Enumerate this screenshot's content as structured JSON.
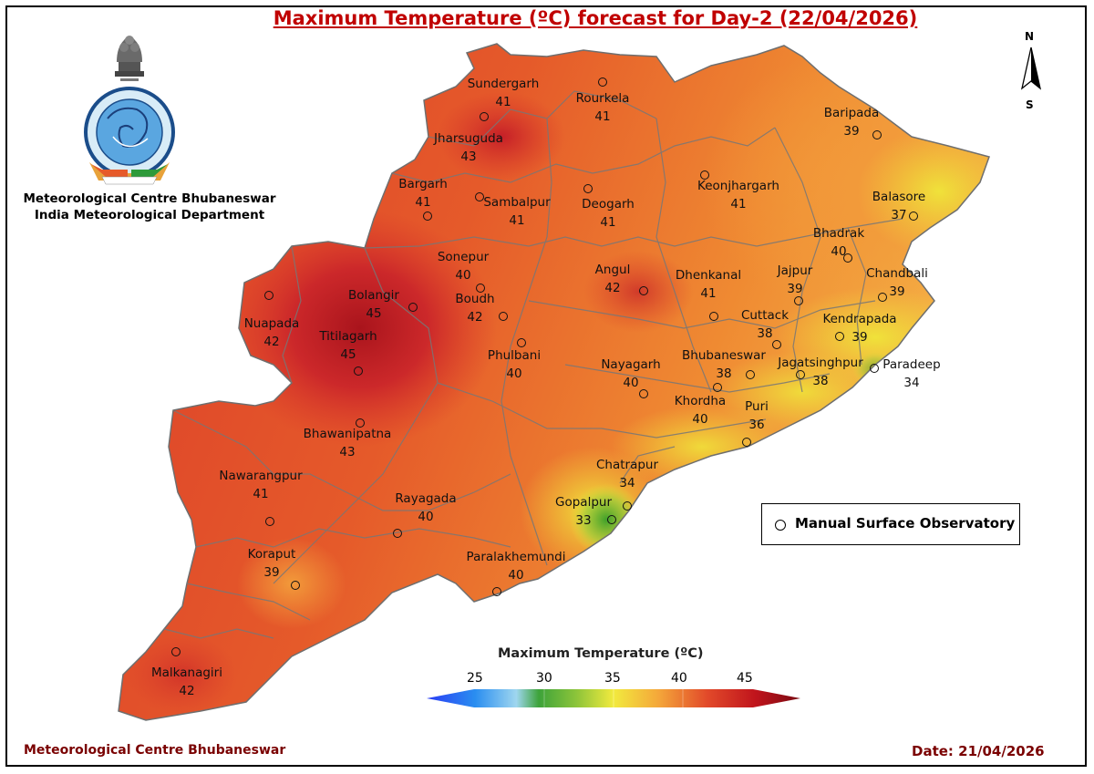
{
  "title": "Maximum Temperature (ºC) forecast for Day-2 (22/04/2026)",
  "organization": {
    "line1": "Meteorological Centre Bhubaneswar",
    "line2": "India Meteorological Department"
  },
  "footer": {
    "left": "Meteorological Centre Bhubaneswar",
    "date": "Date: 21/04/2026"
  },
  "legend": {
    "label": "Manual Surface Observatory"
  },
  "north_arrow": {
    "north": "N",
    "south": "S"
  },
  "colorbar": {
    "title": "Maximum Temperature (ºC)",
    "ticks": [
      "25",
      "30",
      "35",
      "40",
      "45"
    ]
  },
  "stations": [
    {
      "name": "Sundergarh",
      "temp": "41"
    },
    {
      "name": "Rourkela",
      "temp": "41"
    },
    {
      "name": "Baripada",
      "temp": "39"
    },
    {
      "name": "Jharsuguda",
      "temp": "43"
    },
    {
      "name": "Bargarh",
      "temp": "41"
    },
    {
      "name": "Sambalpur",
      "temp": "41"
    },
    {
      "name": "Deogarh",
      "temp": "41"
    },
    {
      "name": "Keonjhargarh",
      "temp": "41"
    },
    {
      "name": "Balasore",
      "temp": "37"
    },
    {
      "name": "Bhadrak",
      "temp": "40"
    },
    {
      "name": "Sonepur",
      "temp": "40"
    },
    {
      "name": "Angul",
      "temp": "42"
    },
    {
      "name": "Dhenkanal",
      "temp": "41"
    },
    {
      "name": "Jajpur",
      "temp": "39"
    },
    {
      "name": "Chandbali",
      "temp": "39"
    },
    {
      "name": "Bolangir",
      "temp": "45"
    },
    {
      "name": "Boudh",
      "temp": "42"
    },
    {
      "name": "Nuapada",
      "temp": "42"
    },
    {
      "name": "Cuttack",
      "temp": "38"
    },
    {
      "name": "Kendrapada",
      "temp": "39"
    },
    {
      "name": "Titilagarh",
      "temp": "45"
    },
    {
      "name": "Phulbani",
      "temp": "40"
    },
    {
      "name": "Nayagarh",
      "temp": "40"
    },
    {
      "name": "Bhubaneswar",
      "temp": "38"
    },
    {
      "name": "Jagatsinghpur",
      "temp": "38"
    },
    {
      "name": "Paradeep",
      "temp": "34"
    },
    {
      "name": "Khordha",
      "temp": "40"
    },
    {
      "name": "Puri",
      "temp": "36"
    },
    {
      "name": "Bhawanipatna",
      "temp": "43"
    },
    {
      "name": "Chatrapur",
      "temp": "34"
    },
    {
      "name": "Nawarangpur",
      "temp": "41"
    },
    {
      "name": "Gopalpur",
      "temp": "33"
    },
    {
      "name": "Rayagada",
      "temp": "40"
    },
    {
      "name": "Koraput",
      "temp": "39"
    },
    {
      "name": "Paralakhemundi",
      "temp": "40"
    },
    {
      "name": "Malkanagiri",
      "temp": "42"
    }
  ]
}
